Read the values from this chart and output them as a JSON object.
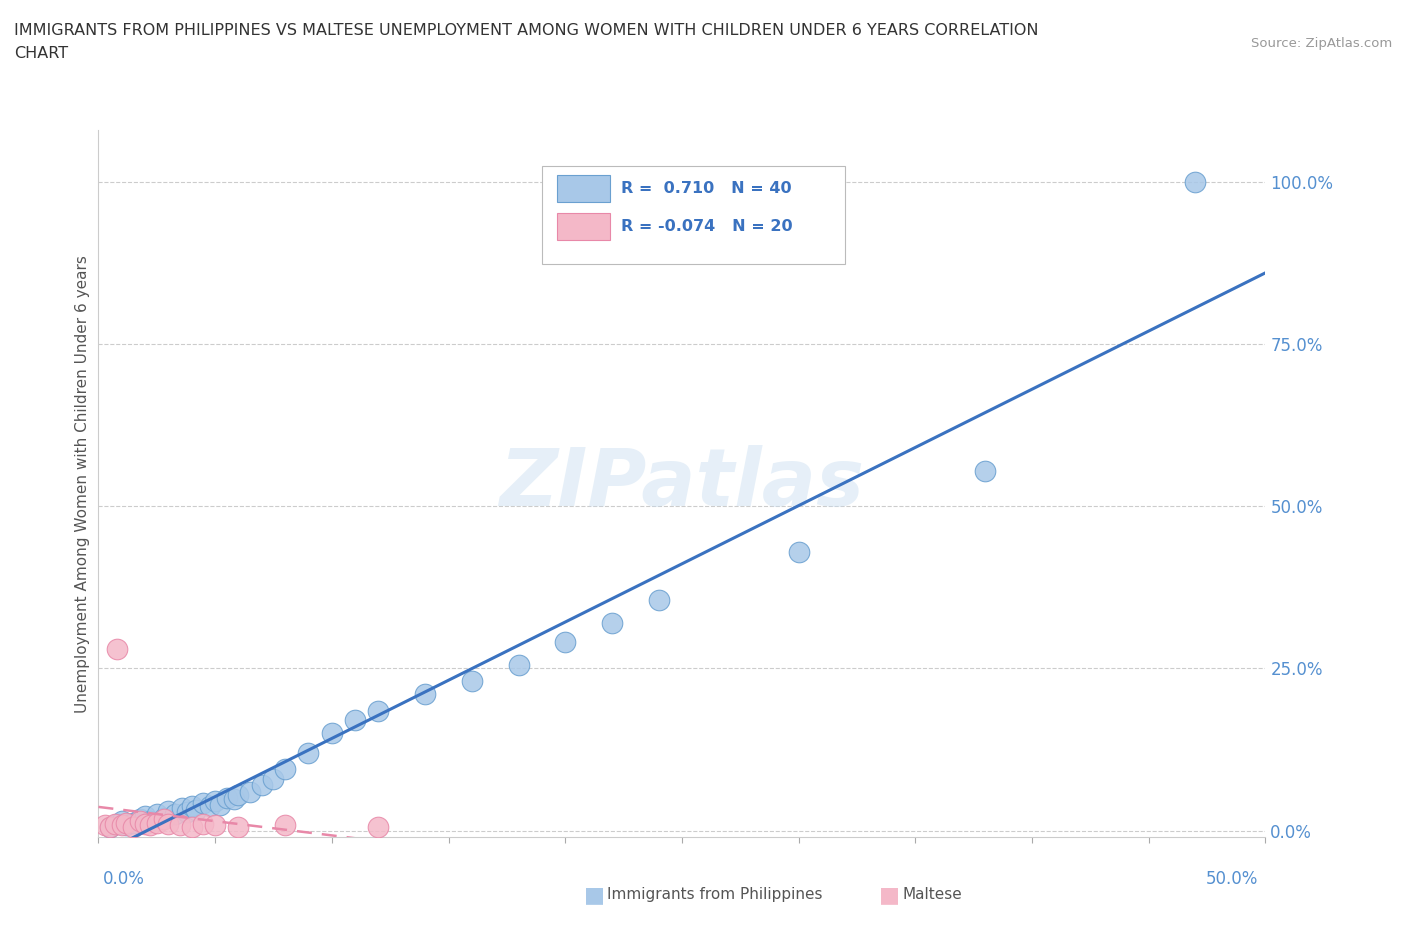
{
  "title_line1": "IMMIGRANTS FROM PHILIPPINES VS MALTESE UNEMPLOYMENT AMONG WOMEN WITH CHILDREN UNDER 6 YEARS CORRELATION",
  "title_line2": "CHART",
  "source": "Source: ZipAtlas.com",
  "ylabel": "Unemployment Among Women with Children Under 6 years",
  "ytick_labels": [
    "0.0%",
    "25.0%",
    "50.0%",
    "75.0%",
    "100.0%"
  ],
  "ytick_values": [
    0,
    0.25,
    0.5,
    0.75,
    1.0
  ],
  "xlim": [
    0,
    0.5
  ],
  "ylim": [
    -0.01,
    1.08
  ],
  "philippines_R": 0.71,
  "philippines_N": 40,
  "maltese_R": -0.074,
  "maltese_N": 20,
  "philippines_color": "#a8c8e8",
  "maltese_color": "#f4b8c8",
  "philippines_edge_color": "#6aa0d0",
  "maltese_edge_color": "#e888a8",
  "philippines_line_color": "#3a72c0",
  "maltese_line_color": "#e888a8",
  "watermark": "ZIPatlas",
  "philippines_x": [
    0.005,
    0.008,
    0.01,
    0.012,
    0.015,
    0.018,
    0.02,
    0.022,
    0.025,
    0.028,
    0.03,
    0.033,
    0.036,
    0.038,
    0.04,
    0.042,
    0.045,
    0.048,
    0.05,
    0.052,
    0.055,
    0.058,
    0.06,
    0.065,
    0.07,
    0.075,
    0.08,
    0.09,
    0.1,
    0.11,
    0.12,
    0.14,
    0.16,
    0.18,
    0.2,
    0.22,
    0.24,
    0.3,
    0.38,
    0.47
  ],
  "philippines_y": [
    0.005,
    0.01,
    0.015,
    0.008,
    0.012,
    0.018,
    0.022,
    0.015,
    0.025,
    0.02,
    0.03,
    0.025,
    0.035,
    0.028,
    0.038,
    0.032,
    0.042,
    0.038,
    0.045,
    0.04,
    0.05,
    0.048,
    0.055,
    0.06,
    0.07,
    0.08,
    0.095,
    0.12,
    0.15,
    0.17,
    0.185,
    0.21,
    0.23,
    0.255,
    0.29,
    0.32,
    0.355,
    0.43,
    0.555,
    1.0
  ],
  "maltese_x": [
    0.003,
    0.005,
    0.007,
    0.008,
    0.01,
    0.012,
    0.015,
    0.018,
    0.02,
    0.022,
    0.025,
    0.028,
    0.03,
    0.035,
    0.04,
    0.045,
    0.05,
    0.06,
    0.08,
    0.12
  ],
  "maltese_y": [
    0.008,
    0.005,
    0.01,
    0.28,
    0.008,
    0.012,
    0.005,
    0.015,
    0.01,
    0.008,
    0.012,
    0.018,
    0.01,
    0.008,
    0.005,
    0.01,
    0.008,
    0.005,
    0.008,
    0.005
  ]
}
